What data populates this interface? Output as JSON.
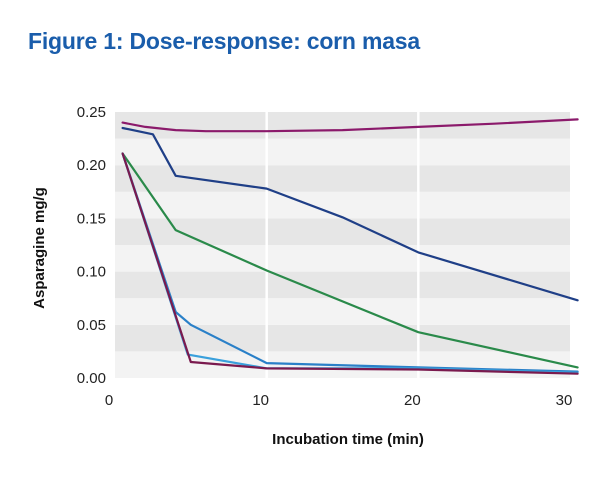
{
  "chart_data": {
    "type": "line",
    "title": "Figure 1: Dose-response: corn masa",
    "xlabel": "Incubation time (min)",
    "ylabel": "Asparagine mg/g",
    "xlim": [
      0,
      30
    ],
    "ylim": [
      0,
      0.25
    ],
    "xticks": [
      0,
      10,
      20,
      30
    ],
    "yticks": [
      0.0,
      0.05,
      0.1,
      0.15,
      0.2,
      0.25
    ],
    "ytick_labels": [
      "0.00",
      "0.05",
      "0.10",
      "0.15",
      "0.20",
      "0.25"
    ],
    "xtick_labels": [
      "0",
      "10",
      "20",
      "30"
    ],
    "grid": "alternating horizontal bands, vertical white gridlines",
    "legend": "none",
    "series": [
      {
        "color": "#8b1a6b",
        "x": [
          0.5,
          2,
          4,
          6,
          10,
          15,
          20,
          25,
          30.5
        ],
        "y": [
          0.24,
          0.236,
          0.233,
          0.232,
          0.232,
          0.233,
          0.236,
          0.239,
          0.243
        ]
      },
      {
        "color": "#1f3f87",
        "x": [
          0.5,
          2.5,
          4,
          10,
          15,
          20,
          30.5
        ],
        "y": [
          0.235,
          0.229,
          0.19,
          0.178,
          0.151,
          0.118,
          0.073
        ]
      },
      {
        "color": "#2a8a4a",
        "x": [
          0.5,
          4,
          10,
          20,
          30.5
        ],
        "y": [
          0.211,
          0.139,
          0.101,
          0.043,
          0.01
        ]
      },
      {
        "color": "#2a80c8",
        "x": [
          0.5,
          4,
          5,
          10,
          20,
          30.5
        ],
        "y": [
          0.211,
          0.062,
          0.05,
          0.014,
          0.01,
          0.006
        ]
      },
      {
        "color": "#3aa0dc",
        "x": [
          0.5,
          4.8,
          10,
          20,
          30.5
        ],
        "y": [
          0.211,
          0.022,
          0.009,
          0.009,
          0.005
        ]
      },
      {
        "color": "#7a1a4e",
        "x": [
          0.5,
          5,
          10,
          20,
          30.5
        ],
        "y": [
          0.211,
          0.015,
          0.009,
          0.008,
          0.004
        ]
      }
    ]
  }
}
